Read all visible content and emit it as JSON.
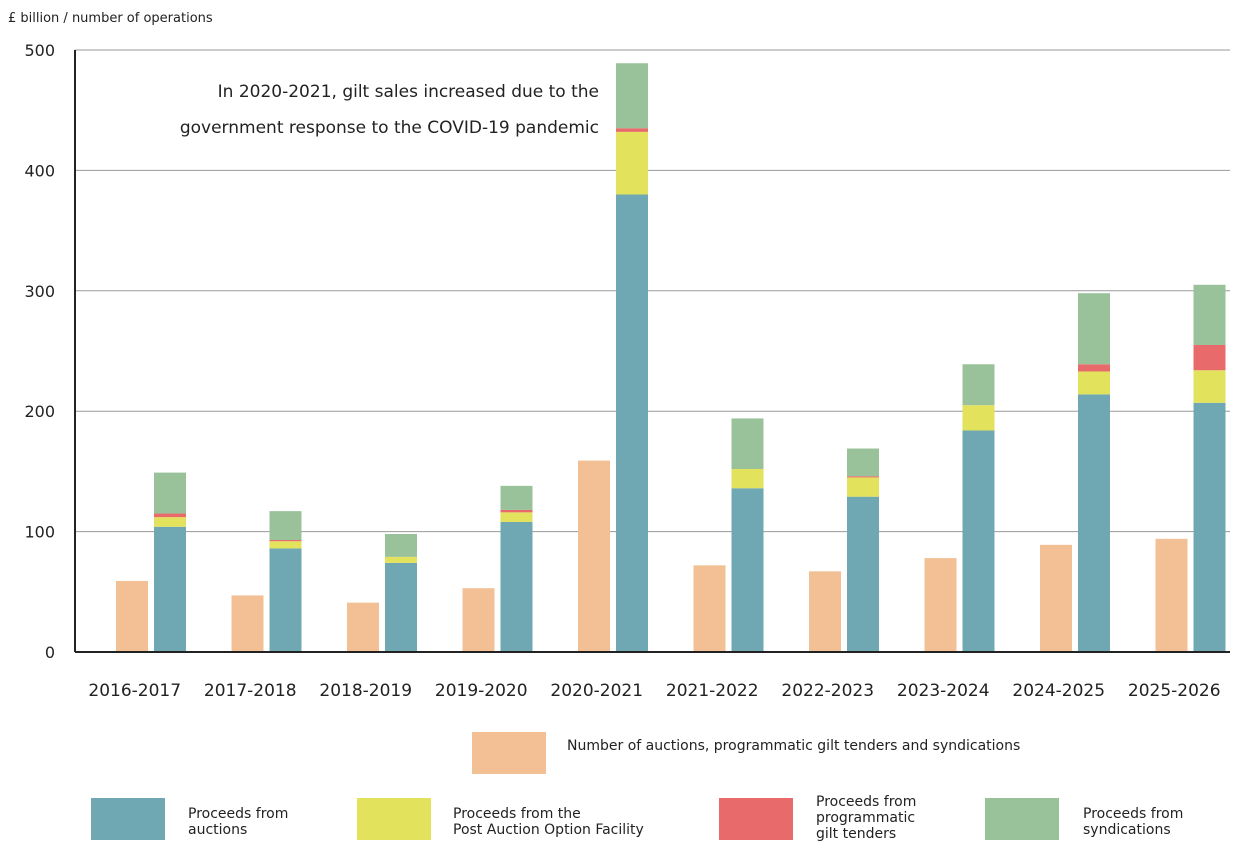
{
  "chart_data": {
    "type": "bar",
    "ylabel": "£ billion / number of operations",
    "ylim": [
      0,
      500
    ],
    "yticks": [
      0,
      100,
      200,
      300,
      400,
      500
    ],
    "grid": true,
    "categories": [
      "2016-2017",
      "2017-2018",
      "2018-2019",
      "2019-2020",
      "2020-2021",
      "2021-2022",
      "2022-2023",
      "2023-2024",
      "2024-2025",
      "2025-2026"
    ],
    "count_series": {
      "name": "Number of auctions, programmatic gilt tenders and syndications",
      "color": "#f2c094",
      "values": [
        59,
        47,
        41,
        53,
        159,
        72,
        67,
        78,
        89,
        94
      ]
    },
    "stacked_series": [
      {
        "name": "Proceeds from\nauctions",
        "color": "#6fa8b2",
        "values": [
          104,
          86,
          74,
          108,
          380,
          136,
          129,
          184,
          214,
          207
        ]
      },
      {
        "name": "Proceeds from the\nPost Auction Option Facility",
        "color": "#e2e25c",
        "values": [
          8,
          6,
          5,
          8,
          52,
          16,
          16,
          21,
          19,
          27
        ]
      },
      {
        "name": "Proceeds from\nprogrammatic\ngilt tenders",
        "color": "#e86a6a",
        "values": [
          3,
          1,
          0,
          2,
          3,
          0,
          1,
          0,
          6,
          21
        ]
      },
      {
        "name": "Proceeds from\nsyndications",
        "color": "#99c29a",
        "values": [
          34,
          24,
          19,
          20,
          54,
          42,
          23,
          34,
          59,
          50
        ]
      }
    ],
    "annotation": {
      "line1": "In 2020-2021, gilt sales increased due to the",
      "line2": "government response to the COVID-19 pandemic"
    },
    "legend_placement": "bottom"
  }
}
